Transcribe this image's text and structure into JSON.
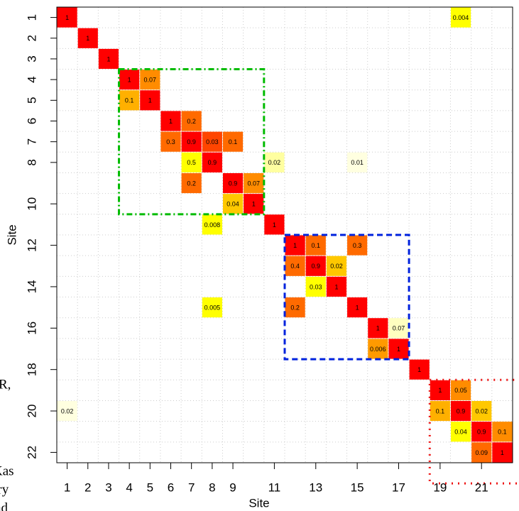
{
  "chart_data": {
    "type": "heatmap",
    "x_label": "Site",
    "y_label": "Site",
    "xlim": [
      0.5,
      22.5
    ],
    "ylim": [
      0.5,
      22.5
    ],
    "y_reversed": true,
    "grid": true,
    "xticks": [
      1,
      2,
      3,
      4,
      5,
      6,
      7,
      8,
      9,
      11,
      13,
      15,
      17,
      19,
      21
    ],
    "yticks": [
      1,
      2,
      3,
      4,
      5,
      6,
      7,
      8,
      10,
      12,
      14,
      16,
      18,
      20,
      22
    ],
    "cells": [
      {
        "row": 1,
        "col": 1,
        "value": 1,
        "color": "#ff0000"
      },
      {
        "row": 1,
        "col": 20,
        "value": 0.004,
        "color": "#ffff00"
      },
      {
        "row": 2,
        "col": 2,
        "value": 1,
        "color": "#ff0000"
      },
      {
        "row": 3,
        "col": 3,
        "value": 1,
        "color": "#ff0000"
      },
      {
        "row": 4,
        "col": 4,
        "value": 1,
        "color": "#ff0000"
      },
      {
        "row": 4,
        "col": 5,
        "value": 0.07,
        "color": "#ff8c00"
      },
      {
        "row": 5,
        "col": 4,
        "value": 0.1,
        "color": "#ffb000"
      },
      {
        "row": 5,
        "col": 5,
        "value": 1,
        "color": "#ff0000"
      },
      {
        "row": 6,
        "col": 6,
        "value": 1,
        "color": "#ff0000"
      },
      {
        "row": 6,
        "col": 7,
        "value": 0.2,
        "color": "#ff6a00"
      },
      {
        "row": 7,
        "col": 6,
        "value": 0.3,
        "color": "#ff6a00"
      },
      {
        "row": 7,
        "col": 7,
        "value": 0.9,
        "color": "#ff0000"
      },
      {
        "row": 7,
        "col": 8,
        "value": 0.03,
        "color": "#ff4500"
      },
      {
        "row": 7,
        "col": 9,
        "value": 0.1,
        "color": "#ff6a00"
      },
      {
        "row": 8,
        "col": 7,
        "value": 0.5,
        "color": "#ffff00"
      },
      {
        "row": 8,
        "col": 8,
        "value": 0.9,
        "color": "#ff0000"
      },
      {
        "row": 8,
        "col": 11,
        "value": 0.02,
        "color": "#ffffa0"
      },
      {
        "row": 8,
        "col": 15,
        "value": 0.01,
        "color": "#ffffe0"
      },
      {
        "row": 9,
        "col": 7,
        "value": 0.2,
        "color": "#ff6a00"
      },
      {
        "row": 9,
        "col": 9,
        "value": 0.9,
        "color": "#ff0000"
      },
      {
        "row": 9,
        "col": 10,
        "value": 0.07,
        "color": "#ff8c00"
      },
      {
        "row": 10,
        "col": 9,
        "value": 0.04,
        "color": "#ffc800"
      },
      {
        "row": 10,
        "col": 10,
        "value": 1,
        "color": "#ff0000"
      },
      {
        "row": 11,
        "col": 8,
        "value": 0.008,
        "color": "#ffff00"
      },
      {
        "row": 11,
        "col": 11,
        "value": 1,
        "color": "#ff0000"
      },
      {
        "row": 12,
        "col": 12,
        "value": 1,
        "color": "#ff0000"
      },
      {
        "row": 12,
        "col": 13,
        "value": 0.1,
        "color": "#ff6a00"
      },
      {
        "row": 12,
        "col": 15,
        "value": 0.3,
        "color": "#ff6a00"
      },
      {
        "row": 13,
        "col": 12,
        "value": 0.4,
        "color": "#ff6a00"
      },
      {
        "row": 13,
        "col": 13,
        "value": 0.9,
        "color": "#ff0000"
      },
      {
        "row": 13,
        "col": 14,
        "value": 0.02,
        "color": "#ffc800"
      },
      {
        "row": 14,
        "col": 13,
        "value": 0.03,
        "color": "#ffff00"
      },
      {
        "row": 14,
        "col": 14,
        "value": 1,
        "color": "#ff0000"
      },
      {
        "row": 15,
        "col": 8,
        "value": 0.005,
        "color": "#ffff00"
      },
      {
        "row": 15,
        "col": 12,
        "value": 0.2,
        "color": "#ff6a00"
      },
      {
        "row": 15,
        "col": 15,
        "value": 1,
        "color": "#ff0000"
      },
      {
        "row": 16,
        "col": 16,
        "value": 1,
        "color": "#ff0000"
      },
      {
        "row": 16,
        "col": 17,
        "value": 0.07,
        "color": "#ffffc0"
      },
      {
        "row": 17,
        "col": 16,
        "value": 0.006,
        "color": "#ff9a00"
      },
      {
        "row": 17,
        "col": 17,
        "value": 1,
        "color": "#ff0000"
      },
      {
        "row": 18,
        "col": 18,
        "value": 1,
        "color": "#ff0000"
      },
      {
        "row": 19,
        "col": 19,
        "value": 1,
        "color": "#ff0000"
      },
      {
        "row": 19,
        "col": 20,
        "value": 0.05,
        "color": "#ff8c00"
      },
      {
        "row": 20,
        "col": 1,
        "value": 0.02,
        "color": "#ffffe0"
      },
      {
        "row": 20,
        "col": 19,
        "value": 0.1,
        "color": "#ffb000"
      },
      {
        "row": 20,
        "col": 20,
        "value": 0.9,
        "color": "#ff0000"
      },
      {
        "row": 20,
        "col": 21,
        "value": 0.02,
        "color": "#ffc800"
      },
      {
        "row": 21,
        "col": 20,
        "value": 0.04,
        "color": "#ffff00"
      },
      {
        "row": 21,
        "col": 21,
        "value": 0.9,
        "color": "#ff0000"
      },
      {
        "row": 21,
        "col": 22,
        "value": 0.1,
        "color": "#ff8c00"
      },
      {
        "row": 22,
        "col": 21,
        "value": 0.09,
        "color": "#ff6a00"
      },
      {
        "row": 22,
        "col": 22,
        "value": 1,
        "color": "#ff0000"
      }
    ],
    "highlights": [
      {
        "from": 4,
        "to": 10,
        "color": "#00bb00",
        "line": "dotdash"
      },
      {
        "from": 12,
        "to": 17,
        "color": "#0022dd",
        "line": "dashed"
      },
      {
        "from": 19,
        "to": 23,
        "color": "#ee1111",
        "line": "dotted"
      }
    ]
  },
  "background_fragments": [
    "R,",
    "Kas",
    "ary",
    "nd"
  ]
}
